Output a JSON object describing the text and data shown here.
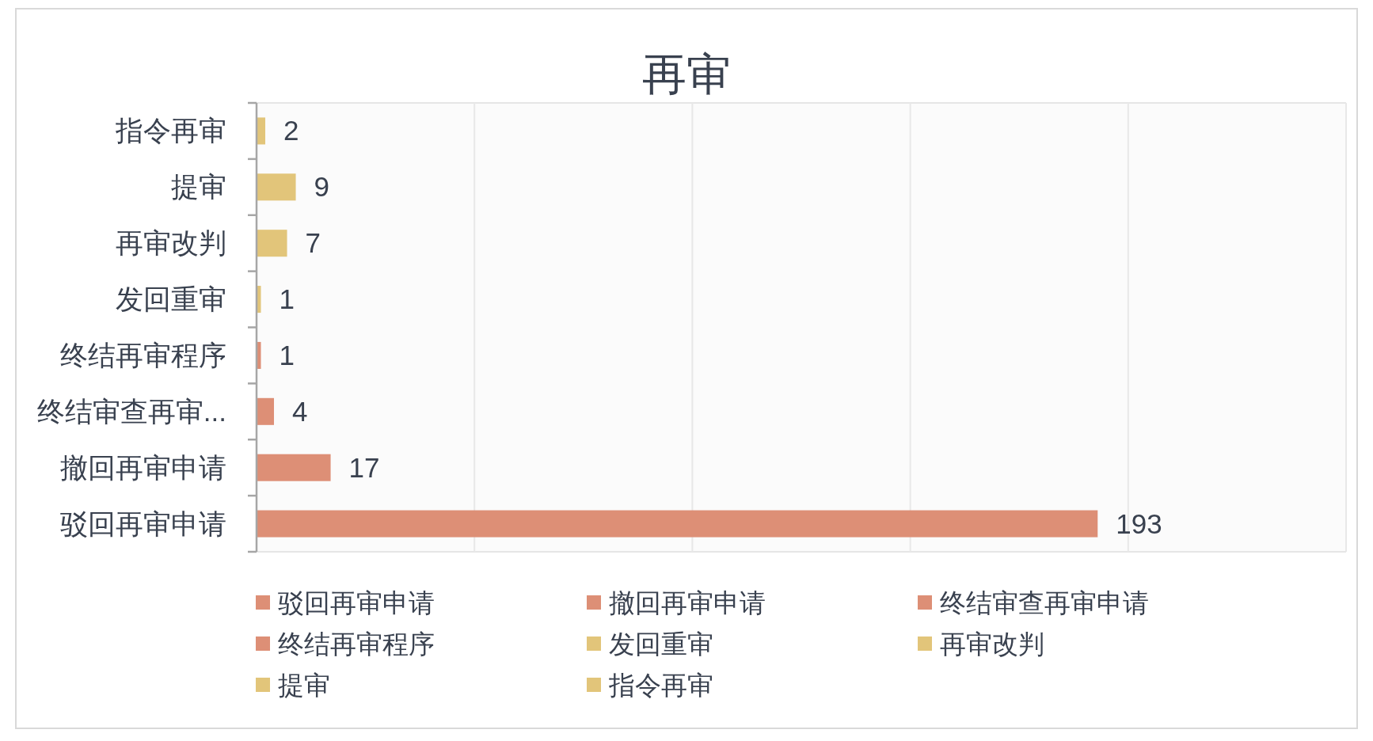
{
  "chart_data": {
    "type": "bar",
    "orientation": "horizontal",
    "stacked": true,
    "title": "再审",
    "categories": [
      "指令再审",
      "提审",
      "再审改判",
      "发回重审",
      "终结再审程序",
      "终结审查再审...",
      "撤回再审申请",
      "驳回再审申请"
    ],
    "series": [
      {
        "name": "驳回再审申请",
        "color": "#dd8f76",
        "values": [
          null,
          null,
          null,
          null,
          null,
          null,
          null,
          193
        ]
      },
      {
        "name": "撤回再审申请",
        "color": "#dd8f76",
        "values": [
          null,
          null,
          null,
          null,
          null,
          null,
          17,
          null
        ]
      },
      {
        "name": "终结审查再审申请",
        "color": "#dd8f76",
        "values": [
          null,
          null,
          null,
          null,
          null,
          4,
          null,
          null
        ]
      },
      {
        "name": "终结再审程序",
        "color": "#dd8f76",
        "values": [
          null,
          null,
          null,
          null,
          1,
          null,
          null,
          null
        ]
      },
      {
        "name": "发回重审",
        "color": "#e2c57a",
        "values": [
          null,
          null,
          null,
          1,
          null,
          null,
          null,
          null
        ]
      },
      {
        "name": "再审改判",
        "color": "#e2c57a",
        "values": [
          null,
          null,
          7,
          null,
          null,
          null,
          null,
          null
        ]
      },
      {
        "name": "提审",
        "color": "#e2c57a",
        "values": [
          null,
          9,
          null,
          null,
          null,
          null,
          null,
          null
        ]
      },
      {
        "name": "指令再审",
        "color": "#e2c57a",
        "values": [
          2,
          null,
          null,
          null,
          null,
          null,
          null,
          null
        ]
      }
    ],
    "xlim": [
      0,
      250
    ],
    "xticks": [
      {
        "value": 0,
        "label": null
      },
      {
        "value": 50,
        "label": null
      },
      {
        "value": 100,
        "label": null
      },
      {
        "value": 150,
        "label": null
      },
      {
        "value": 200,
        "label": null
      },
      {
        "value": 250,
        "label": null
      }
    ],
    "grid": "x",
    "tick_labels": "y",
    "data_labels": true,
    "legend": "bottom"
  }
}
